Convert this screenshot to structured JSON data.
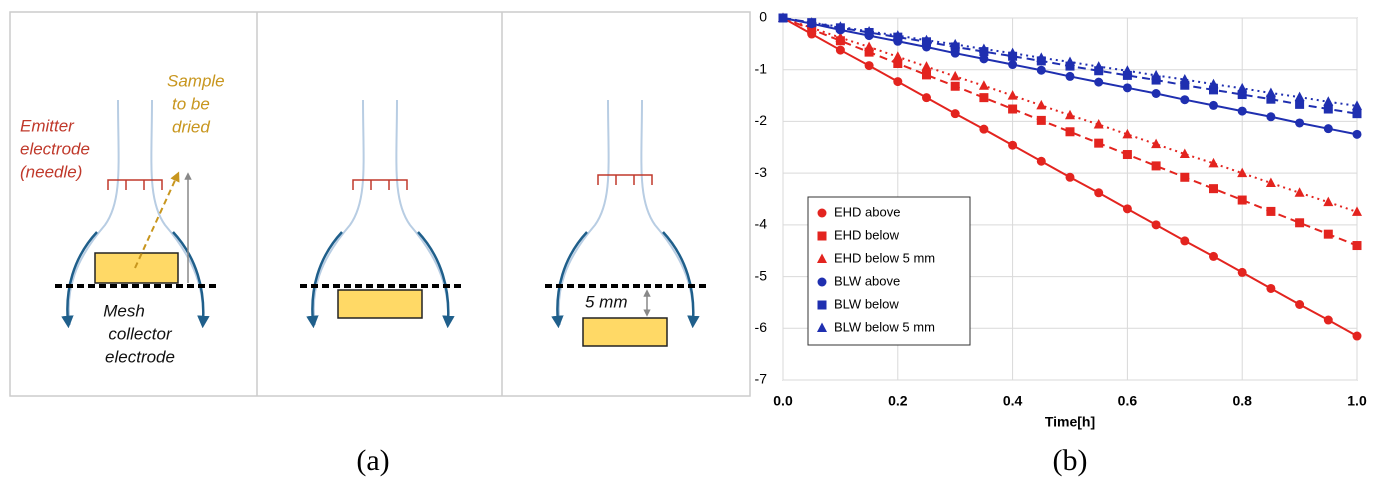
{
  "diagram": {
    "emitter_label": [
      "Emitter",
      "electrode",
      "(needle)"
    ],
    "sample_label": [
      "Sample",
      "to be",
      "dried"
    ],
    "mesh_label": [
      "Mesh",
      "collector",
      "electrode"
    ],
    "gap_label": "5 mm"
  },
  "panel_labels": [
    "(a)",
    "(b)"
  ],
  "chart_data": {
    "type": "line",
    "xlabel": "Time[h]",
    "x": [
      0,
      0.05,
      0.1,
      0.15,
      0.2,
      0.25,
      0.3,
      0.35,
      0.4,
      0.45,
      0.5,
      0.55,
      0.6,
      0.65,
      0.7,
      0.75,
      0.8,
      0.85,
      0.9,
      0.95,
      1.0
    ],
    "series": [
      {
        "name": "EHD above",
        "color": "#e3241f",
        "marker": "circle",
        "line_style": "solid",
        "values": [
          0,
          -0.31,
          -0.62,
          -0.92,
          -1.23,
          -1.54,
          -1.85,
          -2.15,
          -2.46,
          -2.77,
          -3.08,
          -3.38,
          -3.69,
          -4.0,
          -4.31,
          -4.61,
          -4.92,
          -5.23,
          -5.54,
          -5.84,
          -6.15
        ]
      },
      {
        "name": "EHD below",
        "color": "#e3241f",
        "marker": "square",
        "line_style": "dashed",
        "values": [
          0,
          -0.22,
          -0.44,
          -0.66,
          -0.88,
          -1.1,
          -1.32,
          -1.54,
          -1.76,
          -1.98,
          -2.2,
          -2.42,
          -2.64,
          -2.86,
          -3.08,
          -3.3,
          -3.52,
          -3.74,
          -3.96,
          -4.18,
          -4.4
        ]
      },
      {
        "name": "EHD below 5 mm",
        "color": "#e3241f",
        "marker": "triangle",
        "line_style": "dotted",
        "values": [
          0,
          -0.19,
          -0.38,
          -0.56,
          -0.75,
          -0.94,
          -1.13,
          -1.31,
          -1.5,
          -1.69,
          -1.88,
          -2.06,
          -2.25,
          -2.44,
          -2.63,
          -2.81,
          -3.0,
          -3.19,
          -3.38,
          -3.56,
          -3.75
        ]
      },
      {
        "name": "BLW above",
        "color": "#1f2fb0",
        "marker": "circle",
        "line_style": "solid",
        "values": [
          0,
          -0.11,
          -0.23,
          -0.34,
          -0.45,
          -0.56,
          -0.68,
          -0.79,
          -0.9,
          -1.01,
          -1.13,
          -1.24,
          -1.35,
          -1.46,
          -1.58,
          -1.69,
          -1.8,
          -1.91,
          -2.03,
          -2.14,
          -2.25
        ]
      },
      {
        "name": "BLW below",
        "color": "#1f2fb0",
        "marker": "square",
        "line_style": "dashed",
        "values": [
          0,
          -0.09,
          -0.19,
          -0.28,
          -0.37,
          -0.46,
          -0.56,
          -0.65,
          -0.74,
          -0.83,
          -0.93,
          -1.02,
          -1.11,
          -1.2,
          -1.3,
          -1.39,
          -1.48,
          -1.57,
          -1.67,
          -1.76,
          -1.85
        ]
      },
      {
        "name": "BLW below 5 mm",
        "color": "#1f2fb0",
        "marker": "triangle",
        "line_style": "dotted",
        "values": [
          0,
          -0.09,
          -0.17,
          -0.26,
          -0.34,
          -0.43,
          -0.51,
          -0.6,
          -0.68,
          -0.77,
          -0.85,
          -0.94,
          -1.02,
          -1.11,
          -1.19,
          -1.28,
          -1.36,
          -1.45,
          -1.53,
          -1.62,
          -1.7
        ]
      }
    ],
    "xlim": [
      0,
      1.0
    ],
    "xticks": [
      {
        "value": 0,
        "label": "0.0"
      },
      0.2,
      0.4,
      0.6,
      0.8,
      {
        "value": 1.0,
        "label": "1.0"
      }
    ],
    "ylim": [
      -7,
      0
    ],
    "yticks": [
      -7,
      -6,
      -5,
      -4,
      -3,
      -2,
      -1,
      0
    ],
    "grid": true,
    "legend": "lower left"
  }
}
